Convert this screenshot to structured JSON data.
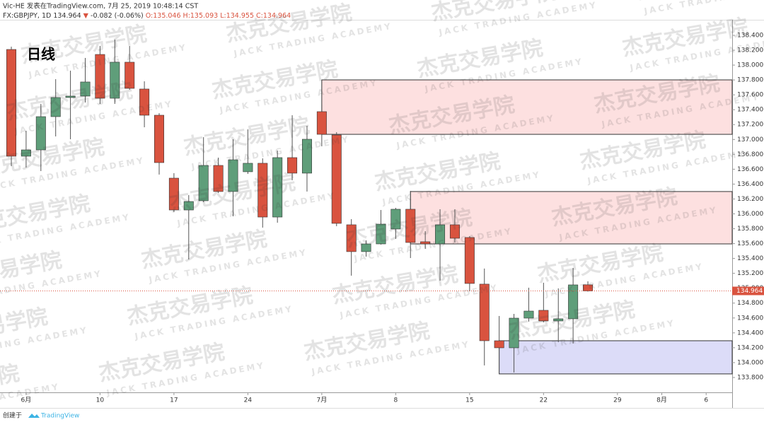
{
  "header": {
    "author_line": "Vic-HE 发表在TradingView.com, 7月 25, 2019 10:48:14 CST",
    "symbol": "FX:GBPJPY, 1D",
    "price": "134.964",
    "change": "-0.082 (-0.06%)",
    "ohlc": [
      "O:135.046",
      "H:135.093",
      "L:134.955",
      "C:134.964"
    ]
  },
  "footer": {
    "created": "创建于",
    "brand": "TradingView"
  },
  "watermark": {
    "text": "杰克交易学院",
    "subtext": "JACK TRADING ACADEMY"
  },
  "chart_data": {
    "type": "candlestick",
    "annotation": "日线",
    "up_color": "#5f9e7a",
    "down_color": "#d9533f",
    "open": [
      138.21,
      136.775,
      136.86,
      137.307,
      137.564,
      137.583,
      138.143,
      137.554,
      138.039,
      137.678,
      137.326,
      136.48,
      136.052,
      136.176,
      136.651,
      136.3,
      136.566,
      136.68,
      135.957,
      136.756,
      136.547,
      137.374,
      137.06,
      135.853,
      135.492,
      135.596,
      135.796,
      136.062,
      135.625,
      135.596,
      135.853,
      135.682,
      135.055,
      134.294,
      134.199,
      134.598,
      134.703,
      134.56,
      134.589,
      135.046
    ],
    "high": [
      138.248,
      137.117,
      137.478,
      137.811,
      137.925,
      138.096,
      138.257,
      138.343,
      138.257,
      137.782,
      137.354,
      136.547,
      136.252,
      137.031,
      136.756,
      137.003,
      137.136,
      136.746,
      136.851,
      137.326,
      137.183,
      137.469,
      137.098,
      135.929,
      135.644,
      136.052,
      136.081,
      136.309,
      135.767,
      136.062,
      136.062,
      135.701,
      135.264,
      134.627,
      134.655,
      135.007,
      135.074,
      134.998,
      135.273,
      135.093
    ],
    "low": [
      136.642,
      136.623,
      136.575,
      137.041,
      137.003,
      137.497,
      137.478,
      137.478,
      137.668,
      137.164,
      136.528,
      136.024,
      135.387,
      136.157,
      136.281,
      135.967,
      136.537,
      135.815,
      135.881,
      136.452,
      136.3,
      136.908,
      135.834,
      135.169,
      135.425,
      135.587,
      135.663,
      135.406,
      135.53,
      135.102,
      135.615,
      134.959,
      133.962,
      134.19,
      133.867,
      134.551,
      134.541,
      134.275,
      134.256,
      134.955
    ],
    "close": [
      136.775,
      136.86,
      137.307,
      137.564,
      137.583,
      137.773,
      137.554,
      138.039,
      137.687,
      137.326,
      136.689,
      136.052,
      136.166,
      136.651,
      136.3,
      136.727,
      136.68,
      135.957,
      136.756,
      136.547,
      137.003,
      137.069,
      135.872,
      135.492,
      135.596,
      135.862,
      136.062,
      135.615,
      135.596,
      135.853,
      135.672,
      135.064,
      134.294,
      134.199,
      134.598,
      134.693,
      134.56,
      134.589,
      135.045,
      134.964
    ],
    "last_price": 134.964,
    "zones": [
      {
        "from": 21,
        "top": 137.801,
        "bottom": 137.069,
        "color": "#fde0e0"
      },
      {
        "from": 27,
        "top": 136.3,
        "bottom": 135.596,
        "color": "#fde0e0"
      },
      {
        "from": 33,
        "top": 134.294,
        "bottom": 133.848,
        "color": "#dcdcf8"
      }
    ],
    "xlim": [
      -0.766,
      48.76
    ],
    "xticks": [
      {
        "value": 1,
        "label": "6月"
      },
      {
        "value": 6,
        "label": "10"
      },
      {
        "value": 11,
        "label": "17"
      },
      {
        "value": 16,
        "label": "24"
      },
      {
        "value": 21,
        "label": "7月"
      },
      {
        "value": 26,
        "label": "8"
      },
      {
        "value": 31,
        "label": "15"
      },
      {
        "value": 36,
        "label": "22"
      },
      {
        "value": 41,
        "label": "29"
      },
      {
        "value": 44,
        "label": "8月"
      },
      {
        "value": 47,
        "label": "6"
      }
    ],
    "ylim": [
      133.6,
      138.609
    ],
    "yticks": [
      {
        "value": 133.8,
        "label": "133.800"
      },
      {
        "value": 134.0,
        "label": "134.000"
      },
      {
        "value": 134.2,
        "label": "134.200"
      },
      {
        "value": 134.4,
        "label": "134.400"
      },
      {
        "value": 134.6,
        "label": "134.600"
      },
      {
        "value": 134.8,
        "label": "134.800"
      },
      {
        "value": 135.0,
        "label": "135.000"
      },
      {
        "value": 135.2,
        "label": "135.200"
      },
      {
        "value": 135.4,
        "label": "135.400"
      },
      {
        "value": 135.6,
        "label": "135.600"
      },
      {
        "value": 135.8,
        "label": "135.800"
      },
      {
        "value": 136.0,
        "label": "136.000"
      },
      {
        "value": 136.2,
        "label": "136.200"
      },
      {
        "value": 136.4,
        "label": "136.400"
      },
      {
        "value": 136.6,
        "label": "136.600"
      },
      {
        "value": 136.8,
        "label": "136.800"
      },
      {
        "value": 137.0,
        "label": "137.000"
      },
      {
        "value": 137.2,
        "label": "137.200"
      },
      {
        "value": 137.4,
        "label": "137.400"
      },
      {
        "value": 137.6,
        "label": "137.600"
      },
      {
        "value": 137.8,
        "label": "137.800"
      },
      {
        "value": 138.0,
        "label": "138.000"
      },
      {
        "value": 138.2,
        "label": "138.200"
      },
      {
        "value": 138.4,
        "label": "138.400"
      }
    ],
    "grid": false
  }
}
